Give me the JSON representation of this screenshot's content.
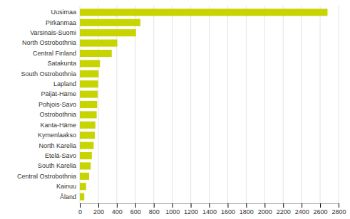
{
  "chart_data": {
    "type": "bar",
    "orientation": "horizontal",
    "categories": [
      "Åland",
      "Kainuu",
      "Central Ostrobothnia",
      "South Karelia",
      "Etelä-Savo",
      "North Karelia",
      "Kymenlaakso",
      "Kanta-Häme",
      "Ostrobothnia",
      "Pohjois-Savo",
      "Päijät-Häme",
      "Lapland",
      "South Ostrobothnia",
      "Satakunta",
      "Central Finland",
      "North Ostrobothnia",
      "Varsinais-Suomi",
      "Pirkanmaa",
      "Uusimaa"
    ],
    "values": [
      48,
      68,
      100,
      118,
      130,
      150,
      162,
      168,
      182,
      188,
      193,
      198,
      203,
      218,
      345,
      405,
      608,
      655,
      2680
    ],
    "color": "#c8d400",
    "xlim": [
      0,
      2800
    ],
    "xticks": [
      0,
      200,
      400,
      600,
      800,
      1000,
      1200,
      1400,
      1600,
      1800,
      2000,
      2200,
      2400,
      2600,
      2800
    ],
    "grid": true
  }
}
